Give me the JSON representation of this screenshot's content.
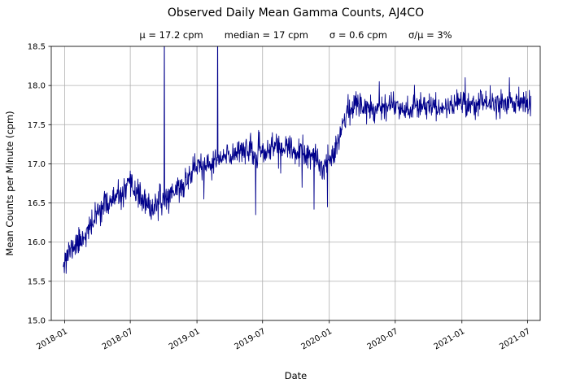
{
  "chart_data": {
    "type": "line",
    "title": "Observed Daily Mean Gamma Counts, AJ4CO",
    "stats": [
      "μ = 17.2 cpm",
      "median = 17 cpm",
      "σ = 0.6 cpm",
      "σ/μ = 3%"
    ],
    "xlabel": "Date",
    "ylabel": "Mean Counts per Minute (cpm)",
    "ylim": [
      15.0,
      18.5
    ],
    "ytick_values": [
      15.0,
      15.5,
      16.0,
      16.5,
      17.0,
      17.5,
      18.0,
      18.5
    ],
    "ytick_labels": [
      "15.0",
      "15.5",
      "16.0",
      "16.5",
      "17.0",
      "17.5",
      "18.0",
      "18.5"
    ],
    "xtick_values": [
      "2018-01-01",
      "2018-07-01",
      "2019-01-01",
      "2019-07-01",
      "2020-01-01",
      "2020-07-01",
      "2021-01-01",
      "2021-07-01"
    ],
    "xtick_labels": [
      "2018-01",
      "2018-07",
      "2019-01",
      "2019-07",
      "2020-01",
      "2020-07",
      "2021-01",
      "2021-07"
    ],
    "x_domain": [
      "2017-11-25",
      "2021-08-05"
    ],
    "grid": true,
    "legend": false,
    "line_color": "#00008b",
    "grid_color": "#b0b0b0",
    "frame_color": "#000000",
    "series": [
      {
        "name": "daily-mean-gamma-counts",
        "noise_sd": 0.085,
        "seed": 11,
        "trend": [
          [
            "2017-12-28",
            15.78
          ],
          [
            "2018-01-10",
            15.85
          ],
          [
            "2018-01-25",
            15.95
          ],
          [
            "2018-02-10",
            16.0
          ],
          [
            "2018-02-25",
            16.1
          ],
          [
            "2018-03-10",
            16.15
          ],
          [
            "2018-03-25",
            16.3
          ],
          [
            "2018-04-10",
            16.45
          ],
          [
            "2018-05-01",
            16.5
          ],
          [
            "2018-05-20",
            16.55
          ],
          [
            "2018-06-10",
            16.6
          ],
          [
            "2018-06-25",
            16.7
          ],
          [
            "2018-07-10",
            16.7
          ],
          [
            "2018-07-25",
            16.6
          ],
          [
            "2018-08-10",
            16.5
          ],
          [
            "2018-08-25",
            16.4
          ],
          [
            "2018-09-10",
            16.5
          ],
          [
            "2018-09-25",
            16.5
          ],
          [
            "2018-10-10",
            16.55
          ],
          [
            "2018-10-25",
            16.65
          ],
          [
            "2018-11-10",
            16.7
          ],
          [
            "2018-11-25",
            16.7
          ],
          [
            "2018-12-10",
            16.85
          ],
          [
            "2018-12-25",
            16.95
          ],
          [
            "2019-01-10",
            17.0
          ],
          [
            "2019-01-25",
            16.9
          ],
          [
            "2019-02-10",
            17.0
          ],
          [
            "2019-02-25",
            17.05
          ],
          [
            "2019-03-10",
            17.05
          ],
          [
            "2019-03-25",
            17.1
          ],
          [
            "2019-04-10",
            17.1
          ],
          [
            "2019-04-25",
            17.2
          ],
          [
            "2019-05-10",
            17.2
          ],
          [
            "2019-05-25",
            17.15
          ],
          [
            "2019-06-10",
            17.1
          ],
          [
            "2019-06-25",
            17.15
          ],
          [
            "2019-07-10",
            17.15
          ],
          [
            "2019-07-25",
            17.2
          ],
          [
            "2019-08-10",
            17.25
          ],
          [
            "2019-08-25",
            17.2
          ],
          [
            "2019-09-10",
            17.2
          ],
          [
            "2019-09-25",
            17.15
          ],
          [
            "2019-10-10",
            17.15
          ],
          [
            "2019-10-25",
            17.1
          ],
          [
            "2019-11-10",
            17.1
          ],
          [
            "2019-11-25",
            17.05
          ],
          [
            "2019-12-10",
            16.95
          ],
          [
            "2019-12-25",
            17.0
          ],
          [
            "2020-01-10",
            17.15
          ],
          [
            "2020-01-25",
            17.3
          ],
          [
            "2020-02-10",
            17.55
          ],
          [
            "2020-02-25",
            17.7
          ],
          [
            "2020-03-10",
            17.75
          ],
          [
            "2020-04-01",
            17.75
          ],
          [
            "2020-05-01",
            17.7
          ],
          [
            "2020-06-01",
            17.75
          ],
          [
            "2020-07-01",
            17.75
          ],
          [
            "2020-08-01",
            17.7
          ],
          [
            "2020-09-01",
            17.75
          ],
          [
            "2020-10-01",
            17.75
          ],
          [
            "2020-11-01",
            17.7
          ],
          [
            "2020-12-01",
            17.75
          ],
          [
            "2021-01-01",
            17.8
          ],
          [
            "2021-02-01",
            17.75
          ],
          [
            "2021-03-01",
            17.8
          ],
          [
            "2021-04-01",
            17.75
          ],
          [
            "2021-05-01",
            17.8
          ],
          [
            "2021-06-01",
            17.78
          ],
          [
            "2021-07-10",
            17.75
          ]
        ],
        "spikes": [
          [
            "2018-01-05",
            15.6
          ],
          [
            "2018-10-03",
            19.0
          ],
          [
            "2019-01-20",
            16.55
          ],
          [
            "2019-02-27",
            19.0
          ],
          [
            "2019-06-12",
            16.35
          ],
          [
            "2019-08-20",
            16.88
          ],
          [
            "2019-10-18",
            16.7
          ],
          [
            "2019-11-20",
            16.42
          ],
          [
            "2019-12-27",
            16.45
          ],
          [
            "2020-05-18",
            18.05
          ],
          [
            "2021-01-10",
            18.1
          ],
          [
            "2021-03-20",
            18.0
          ],
          [
            "2021-05-12",
            18.1
          ]
        ]
      }
    ]
  }
}
